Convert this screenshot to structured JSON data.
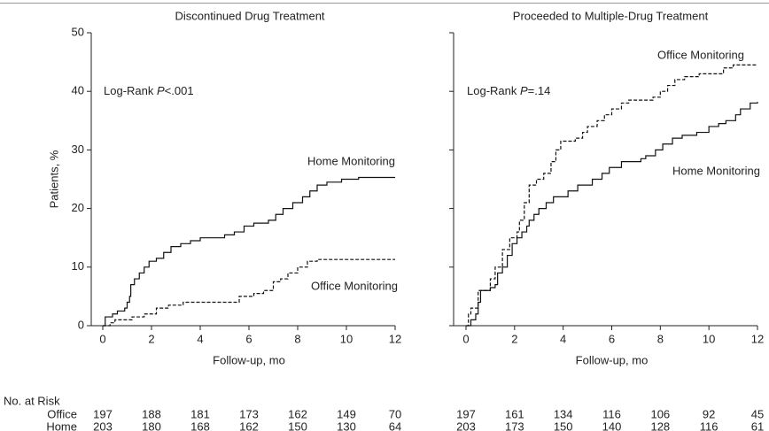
{
  "risk_table": {
    "title": "No. at Risk",
    "row_labels": [
      "Office",
      "Home"
    ]
  },
  "chart_data": [
    {
      "type": "step",
      "title": "Discontinued Drug Treatment",
      "xlabel": "Follow-up, mo",
      "ylabel": "Patients, %",
      "xlim": [
        0,
        12
      ],
      "xticks": [
        0,
        2,
        4,
        6,
        8,
        10,
        12
      ],
      "ylim": [
        0,
        50
      ],
      "yticks": [
        0,
        10,
        20,
        30,
        40,
        50
      ],
      "ytick_labels": true,
      "annotation": [
        "Log-Rank ",
        "P",
        "<.001"
      ],
      "series": [
        {
          "name": "Home Monitoring",
          "color": "#111111",
          "dash": "solid",
          "x": [
            0,
            0.1,
            0.4,
            0.6,
            0.9,
            1.0,
            1.1,
            1.15,
            1.3,
            1.5,
            1.7,
            1.9,
            2.2,
            2.5,
            2.8,
            3.2,
            3.6,
            4.0,
            5.0,
            5.4,
            5.8,
            6.2,
            6.8,
            7.1,
            7.4,
            7.8,
            8.2,
            8.5,
            8.8,
            9.2,
            9.8,
            10.5,
            12
          ],
          "values": [
            0,
            1.5,
            2,
            2.5,
            3,
            4,
            5,
            7,
            8,
            9,
            10,
            11,
            11.5,
            12.5,
            13.5,
            14,
            14.5,
            15,
            15.5,
            16,
            17,
            17.5,
            18,
            19,
            20,
            21,
            22,
            23,
            24,
            24.5,
            25,
            25.3,
            25.3
          ]
        },
        {
          "name": "Office Monitoring",
          "color": "#111111",
          "dash": "dashed",
          "x": [
            0,
            0.3,
            0.5,
            1.2,
            1.7,
            2.2,
            2.7,
            3.3,
            5.6,
            6.2,
            6.6,
            7.0,
            7.3,
            7.6,
            8.0,
            8.4,
            8.8,
            12
          ],
          "values": [
            0,
            0.5,
            1,
            1.5,
            2,
            3,
            3.5,
            4,
            5,
            5.5,
            6,
            7.5,
            8,
            9,
            10,
            11,
            11.3,
            11.3
          ]
        }
      ],
      "at_risk": [
        [
          197,
          188,
          181,
          173,
          162,
          149,
          70
        ],
        [
          203,
          180,
          168,
          162,
          150,
          130,
          64
        ]
      ]
    },
    {
      "type": "step",
      "title": "Proceeded to Multiple-Drug Treatment",
      "xlabel": "Follow-up, mo",
      "xlim": [
        0,
        12
      ],
      "xticks": [
        0,
        2,
        4,
        6,
        8,
        10,
        12
      ],
      "ylim": [
        0,
        50
      ],
      "yticks": [
        0,
        10,
        20,
        30,
        40,
        50
      ],
      "ytick_labels": false,
      "annotation": [
        "Log-Rank ",
        "P",
        "=.14"
      ],
      "series": [
        {
          "name": "Office Monitoring",
          "color": "#111111",
          "dash": "dashed",
          "x": [
            0,
            0.1,
            0.2,
            0.5,
            1.0,
            1.2,
            1.5,
            1.8,
            2.1,
            2.2,
            2.4,
            2.6,
            2.9,
            3.2,
            3.5,
            3.7,
            3.9,
            4.5,
            4.8,
            5.0,
            5.4,
            5.7,
            6.0,
            6.4,
            6.7,
            7.7,
            8.0,
            8.3,
            8.6,
            9.0,
            9.6,
            10.6,
            11.0,
            12
          ],
          "values": [
            0,
            2,
            3,
            6,
            8,
            10,
            13,
            15,
            16,
            18,
            21,
            24,
            25,
            26,
            28,
            30,
            31.5,
            32,
            33,
            34,
            35,
            36,
            37,
            38,
            38.5,
            39,
            40,
            41,
            42,
            42.5,
            43,
            44,
            44.5,
            44.5
          ]
        },
        {
          "name": "Home Monitoring",
          "color": "#111111",
          "dash": "solid",
          "x": [
            0,
            0.2,
            0.4,
            0.5,
            0.6,
            1.0,
            1.2,
            1.3,
            1.5,
            1.7,
            1.9,
            2.1,
            2.3,
            2.5,
            2.6,
            2.8,
            3.0,
            3.3,
            3.6,
            4.2,
            4.6,
            5.2,
            5.6,
            5.9,
            6.4,
            7.2,
            7.4,
            7.8,
            8.1,
            8.5,
            8.9,
            9.5,
            10.0,
            10.4,
            10.7,
            11.1,
            11.3,
            11.7,
            12
          ],
          "values": [
            0,
            1,
            2,
            4,
            6,
            6.5,
            7,
            9,
            10,
            12,
            14,
            15,
            16,
            17,
            18,
            19,
            20,
            21,
            22,
            23,
            24,
            25,
            26,
            27,
            28,
            28.5,
            29,
            30,
            31,
            32,
            32.5,
            33,
            34,
            34.5,
            35,
            36,
            37,
            38,
            38.2
          ]
        }
      ],
      "at_risk": [
        [
          197,
          161,
          134,
          116,
          106,
          92,
          45
        ],
        [
          203,
          173,
          150,
          140,
          128,
          116,
          61
        ]
      ]
    }
  ]
}
